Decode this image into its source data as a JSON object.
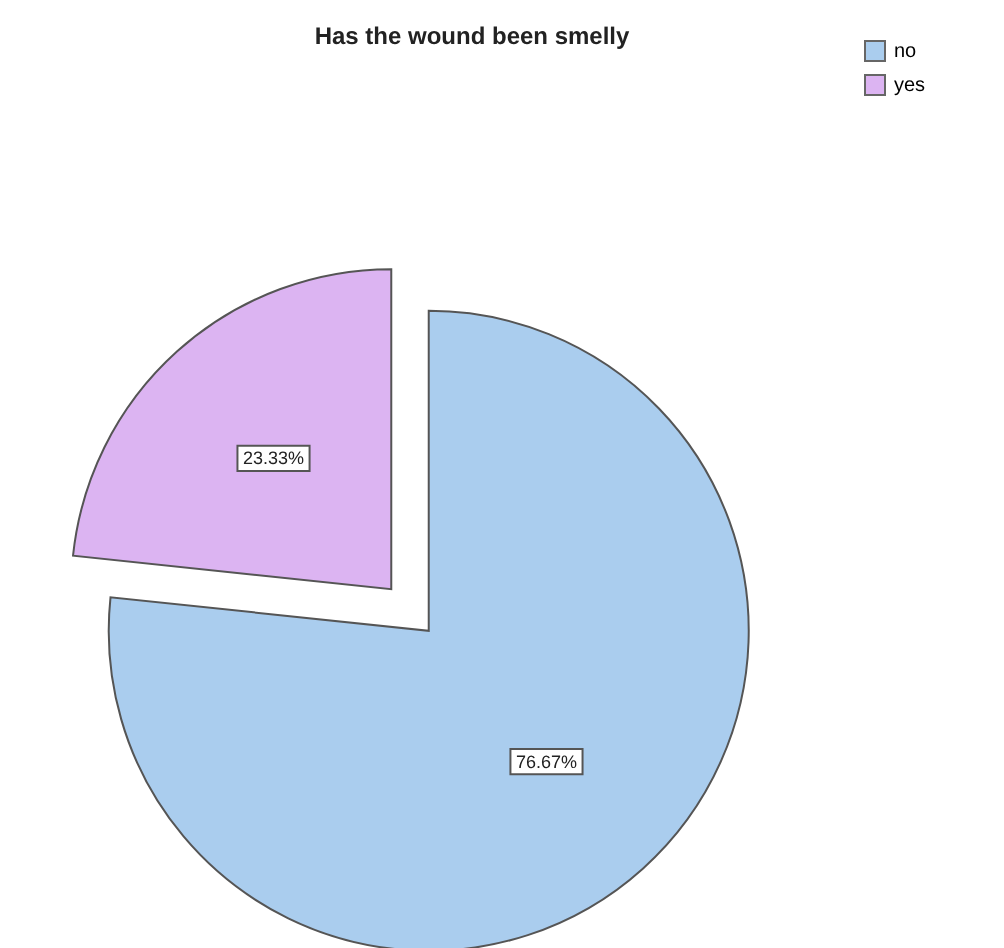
{
  "chart_data": {
    "type": "pie",
    "title": "Has the wound been smelly",
    "categories": [
      "no",
      "yes"
    ],
    "values": [
      76.67,
      23.33
    ],
    "colors": [
      "#aacdee",
      "#dcb4f2"
    ],
    "value_labels": [
      "76.67%",
      "23.33%"
    ],
    "legend": "top right"
  }
}
